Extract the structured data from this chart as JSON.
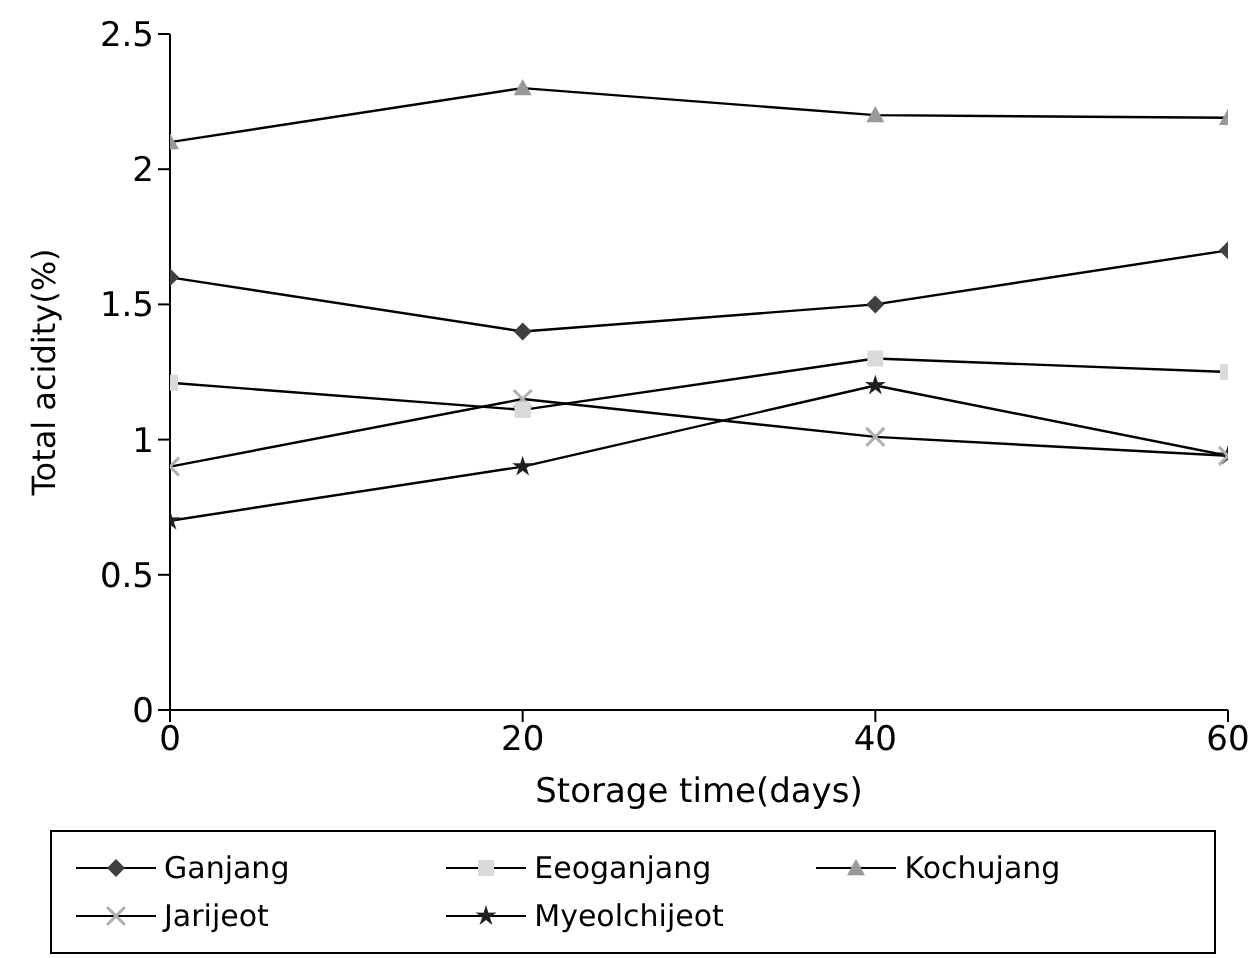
{
  "chart_data": {
    "type": "line",
    "xlabel": "Storage time(days)",
    "ylabel": "Total acidity(%)",
    "x": [
      0,
      20,
      40,
      60
    ],
    "xlim": [
      0,
      60
    ],
    "xticks": [
      0,
      20,
      40,
      60
    ],
    "ylim": [
      0,
      2.5
    ],
    "yticks": [
      0,
      0.5,
      1,
      1.5,
      2,
      2.5
    ],
    "grid": false,
    "legend": "bottom",
    "line_style": "solid",
    "series": [
      {
        "name": "Ganjang",
        "color": "#404040",
        "marker": "diamond",
        "values": [
          1.6,
          1.4,
          1.5,
          1.7
        ]
      },
      {
        "name": "Eeoganjang",
        "color": "#d9d9d9",
        "marker": "square",
        "values": [
          1.21,
          1.11,
          1.3,
          1.25
        ]
      },
      {
        "name": "Kochujang",
        "color": "#999999",
        "marker": "triangle",
        "values": [
          2.1,
          2.3,
          2.2,
          2.19
        ]
      },
      {
        "name": "Jarijeot",
        "color": "#b0b0b0",
        "marker": "cross",
        "values": [
          0.9,
          1.15,
          1.01,
          0.94
        ]
      },
      {
        "name": "Myeolchijeot",
        "color": "#202020",
        "marker": "star",
        "values": [
          0.7,
          0.9,
          1.2,
          0.94
        ]
      }
    ]
  }
}
